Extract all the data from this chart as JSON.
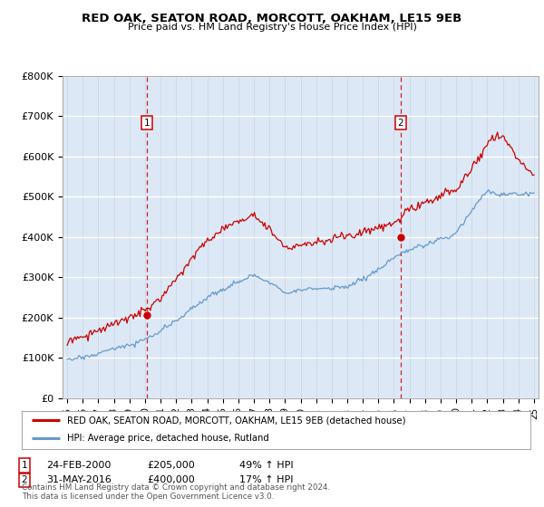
{
  "title": "RED OAK, SEATON ROAD, MORCOTT, OAKHAM, LE15 9EB",
  "subtitle": "Price paid vs. HM Land Registry's House Price Index (HPI)",
  "background_color": "#dce8f5",
  "red_line_color": "#cc0000",
  "blue_line_color": "#6699cc",
  "ylim": [
    0,
    800000
  ],
  "yticks": [
    0,
    100000,
    200000,
    300000,
    400000,
    500000,
    600000,
    700000,
    800000
  ],
  "ytick_labels": [
    "£0",
    "£100K",
    "£200K",
    "£300K",
    "£400K",
    "£500K",
    "£600K",
    "£700K",
    "£800K"
  ],
  "purchase1_date": 2000.12,
  "purchase1_price": 205000,
  "purchase2_date": 2016.42,
  "purchase2_price": 400000,
  "legend_line1": "RED OAK, SEATON ROAD, MORCOTT, OAKHAM, LE15 9EB (detached house)",
  "legend_line2": "HPI: Average price, detached house, Rutland",
  "annotation1_date": "24-FEB-2000",
  "annotation1_price": "£205,000",
  "annotation1_hpi": "49% ↑ HPI",
  "annotation2_date": "31-MAY-2016",
  "annotation2_price": "£400,000",
  "annotation2_hpi": "17% ↑ HPI",
  "footer": "Contains HM Land Registry data © Crown copyright and database right 2024.\nThis data is licensed under the Open Government Licence v3.0.",
  "xmin": 1994.7,
  "xmax": 2025.3
}
